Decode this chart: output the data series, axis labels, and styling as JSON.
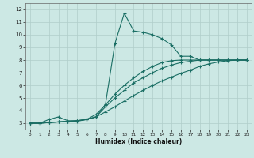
{
  "xlabel": "Humidex (Indice chaleur)",
  "bg_color": "#cce8e4",
  "grid_color": "#b0ceca",
  "line_color": "#1a6e64",
  "xlim": [
    -0.5,
    23.5
  ],
  "ylim": [
    2.5,
    12.5
  ],
  "xticks": [
    0,
    1,
    2,
    3,
    4,
    5,
    6,
    7,
    8,
    9,
    10,
    11,
    12,
    13,
    14,
    15,
    16,
    17,
    18,
    19,
    20,
    21,
    22,
    23
  ],
  "yticks": [
    3,
    4,
    5,
    6,
    7,
    8,
    9,
    10,
    11,
    12
  ],
  "line1_x": [
    0,
    1,
    2,
    3,
    4,
    5,
    6,
    7,
    8,
    9,
    10,
    11,
    12,
    13,
    14,
    15,
    16,
    17,
    18,
    19,
    20,
    21,
    22,
    23
  ],
  "line1_y": [
    3.0,
    3.0,
    3.3,
    3.5,
    3.2,
    3.15,
    3.3,
    3.5,
    4.5,
    9.3,
    11.7,
    10.3,
    10.2,
    10.0,
    9.7,
    9.2,
    8.3,
    8.3,
    8.0,
    8.0,
    8.0,
    8.0,
    8.0,
    8.0
  ],
  "line2_x": [
    0,
    1,
    2,
    3,
    4,
    5,
    6,
    7,
    8,
    9,
    10,
    11,
    12,
    13,
    14,
    15,
    16,
    17,
    18,
    19,
    20,
    21,
    22,
    23
  ],
  "line2_y": [
    3.0,
    3.0,
    3.05,
    3.1,
    3.15,
    3.2,
    3.3,
    3.5,
    3.9,
    4.3,
    4.75,
    5.2,
    5.6,
    6.0,
    6.35,
    6.65,
    6.95,
    7.2,
    7.5,
    7.7,
    7.85,
    7.95,
    8.0,
    8.0
  ],
  "line3_x": [
    0,
    1,
    2,
    3,
    4,
    5,
    6,
    7,
    8,
    9,
    10,
    11,
    12,
    13,
    14,
    15,
    16,
    17,
    18,
    19,
    20,
    21,
    22,
    23
  ],
  "line3_y": [
    3.0,
    3.0,
    3.05,
    3.1,
    3.15,
    3.2,
    3.3,
    3.5,
    4.3,
    5.0,
    5.6,
    6.2,
    6.6,
    7.0,
    7.35,
    7.6,
    7.8,
    7.9,
    8.0,
    8.0,
    8.0,
    8.0,
    8.0,
    8.0
  ],
  "line4_x": [
    0,
    1,
    2,
    3,
    4,
    5,
    6,
    7,
    8,
    9,
    10,
    11,
    12,
    13,
    14,
    15,
    16,
    17,
    18,
    19,
    20,
    21,
    22,
    23
  ],
  "line4_y": [
    3.0,
    3.0,
    3.05,
    3.1,
    3.15,
    3.2,
    3.3,
    3.7,
    4.45,
    5.3,
    6.0,
    6.6,
    7.1,
    7.5,
    7.8,
    7.95,
    8.0,
    8.0,
    8.0,
    8.0,
    8.0,
    8.0,
    8.0,
    8.0
  ]
}
